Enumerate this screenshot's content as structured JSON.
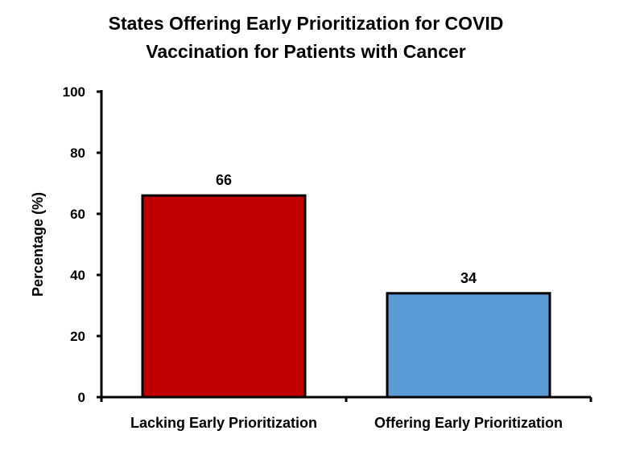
{
  "chart_data": {
    "type": "bar",
    "title_lines": [
      "States Offering Early Prioritization for COVID",
      "Vaccination for Patients with Cancer"
    ],
    "categories": [
      "Lacking Early Prioritization",
      "Offering Early Prioritization"
    ],
    "values": [
      66,
      34
    ],
    "data_labels": [
      "66",
      "34"
    ],
    "colors": [
      "#c00000",
      "#5b9bd5"
    ],
    "xlabel": "",
    "ylabel": "Percentage (%)",
    "ylim": [
      0,
      100
    ],
    "yticks": [
      0,
      20,
      40,
      60,
      80,
      100
    ],
    "grid": false,
    "legend": "none"
  }
}
